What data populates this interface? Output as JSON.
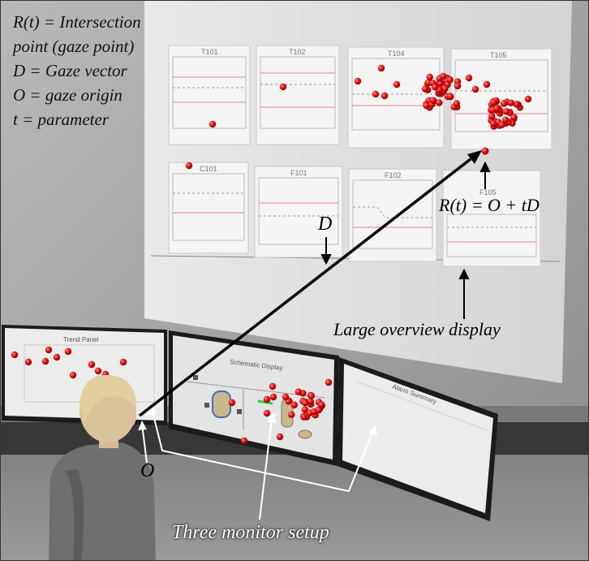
{
  "legend": {
    "line1": "R(t) = Intersection",
    "line2": "point (gaze point)",
    "line3": "D = Gaze vector",
    "line4": "O = gaze origin",
    "line5": "t = parameter"
  },
  "labels": {
    "gaze_vector": "D",
    "intersection_formula": "R(t) = O + tD",
    "origin": "O",
    "large_display": "Large overview display",
    "three_monitor": "Three monitor setup"
  },
  "large_display_panels": [
    "T101",
    "T102",
    "T104",
    "T105",
    "C101",
    "F101",
    "F102",
    "F105"
  ],
  "monitors": {
    "left_title": "Trend Panel",
    "center_title": "Schematic Display",
    "right_title": "Alarm Summary"
  },
  "colors": {
    "gaze_point": "#e01010",
    "arrow": "#000000",
    "projection": "#dcdcdc",
    "wall": "#9e9e9e"
  }
}
